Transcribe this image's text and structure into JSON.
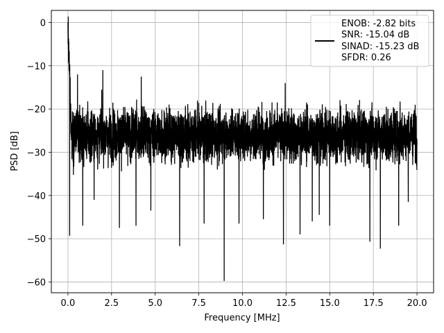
{
  "chart_data": {
    "type": "line",
    "xlabel": "Frequency [MHz]",
    "ylabel": "PSD [dB]",
    "xlim": [
      -0.95,
      20.95
    ],
    "ylim": [
      -62.5,
      2.8
    ],
    "xticks": [
      0.0,
      2.5,
      5.0,
      7.5,
      10.0,
      12.5,
      15.0,
      17.5,
      20.0
    ],
    "xtick_labels": [
      "0.0",
      "2.5",
      "5.0",
      "7.5",
      "10.0",
      "12.5",
      "15.0",
      "17.5",
      "20.0"
    ],
    "yticks": [
      0,
      -10,
      -20,
      -30,
      -40,
      -50,
      -60
    ],
    "ytick_labels": [
      "0",
      "−10",
      "−20",
      "−30",
      "−40",
      "−50",
      "−60"
    ],
    "grid": true,
    "legend": {
      "position": "top-right",
      "entries": [
        "ENOB: -2.82 bits",
        "SNR: -15.04 dB",
        "SINAD: -15.23 dB",
        "SFDR: 0.26"
      ]
    },
    "series": [
      {
        "color": "#000000",
        "x_range": [
          0.0,
          20.0
        ],
        "points_count": 4000,
        "peak": {
          "x": 0.0,
          "y": 0.0
        },
        "noise_floor_mean": -26,
        "noise_upper_envelope": -17,
        "noise_lower_envelope": -36,
        "notable_minima": [
          {
            "x": 0.1,
            "y": -49.3
          },
          {
            "x": 0.55,
            "y": -41.8
          },
          {
            "x": 0.85,
            "y": -47.0
          },
          {
            "x": 1.5,
            "y": -41.0
          },
          {
            "x": 2.0,
            "y": -40.5
          },
          {
            "x": 2.95,
            "y": -47.5
          },
          {
            "x": 3.9,
            "y": -47.0
          },
          {
            "x": 4.75,
            "y": -43.5
          },
          {
            "x": 6.4,
            "y": -51.7
          },
          {
            "x": 7.8,
            "y": -46.5
          },
          {
            "x": 8.95,
            "y": -59.8
          },
          {
            "x": 9.8,
            "y": -46.5
          },
          {
            "x": 11.2,
            "y": -45.5
          },
          {
            "x": 12.35,
            "y": -51.3
          },
          {
            "x": 13.3,
            "y": -49.0
          },
          {
            "x": 14.0,
            "y": -46.0
          },
          {
            "x": 14.4,
            "y": -44.5
          },
          {
            "x": 15.0,
            "y": -47.0
          },
          {
            "x": 17.3,
            "y": -50.7
          },
          {
            "x": 17.9,
            "y": -52.3
          },
          {
            "x": 18.95,
            "y": -47.0
          },
          {
            "x": 19.5,
            "y": -41.5
          }
        ],
        "notable_maxima": [
          {
            "x": 0.55,
            "y": -12.0
          },
          {
            "x": 2.0,
            "y": -11.0
          },
          {
            "x": 4.2,
            "y": -12.5
          },
          {
            "x": 12.45,
            "y": -14.0
          }
        ]
      }
    ]
  }
}
